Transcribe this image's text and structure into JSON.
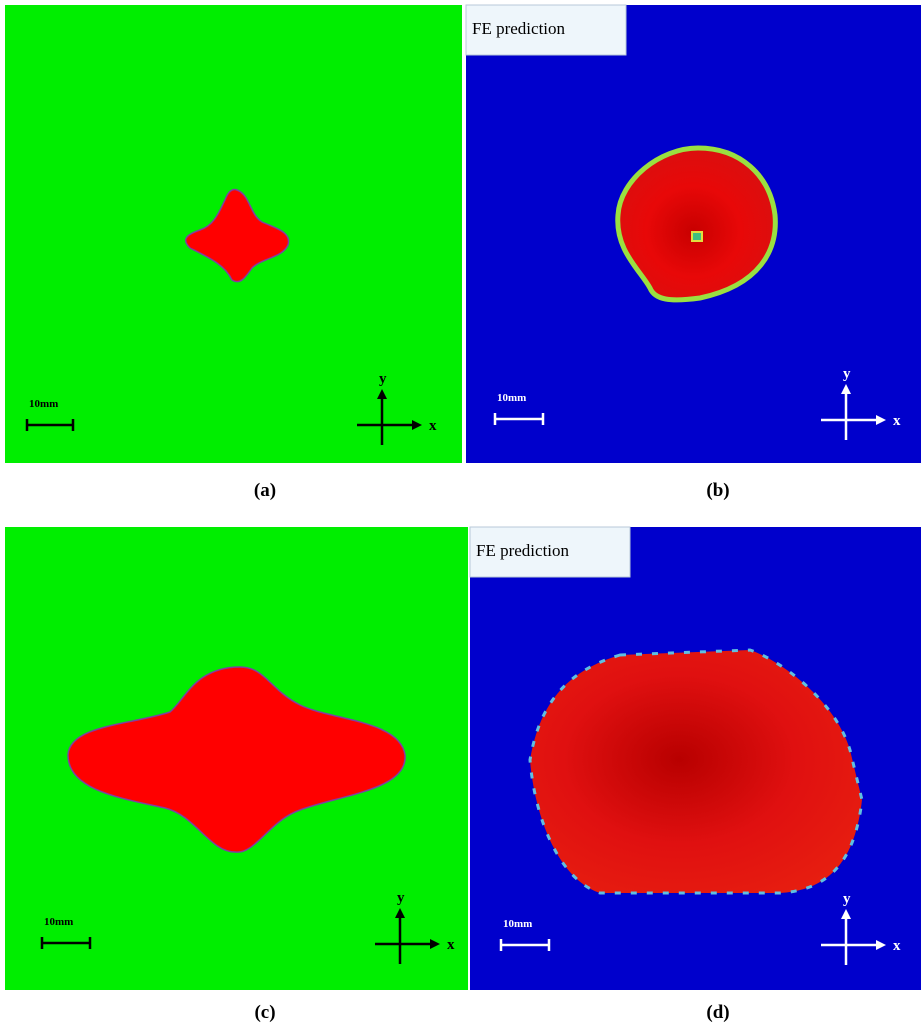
{
  "panels": [
    {
      "label": "(a)",
      "scale_bar": "10mm",
      "axis_x": "x",
      "axis_y": "y"
    },
    {
      "label": "(b)",
      "legend": "FE prediction",
      "scale_bar": "10mm",
      "axis_x": "x",
      "axis_y": "y"
    },
    {
      "label": "(c)",
      "scale_bar": "10mm",
      "axis_x": "x",
      "axis_y": "y"
    },
    {
      "label": "(d)",
      "legend": "FE prediction",
      "scale_bar": "10mm",
      "axis_x": "x",
      "axis_y": "y"
    }
  ]
}
